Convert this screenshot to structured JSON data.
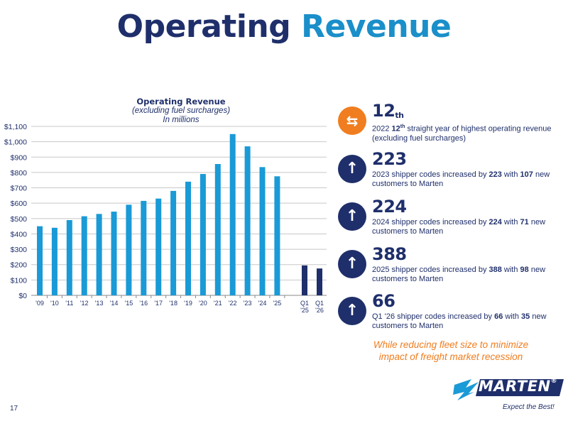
{
  "page": {
    "title_part1": "Operating",
    "title_part2": "Revenue",
    "number": "17"
  },
  "chart_data": {
    "type": "bar",
    "title": "Operating Revenue",
    "subtitle_line1": "(excluding fuel surcharges)",
    "subtitle_line2": "In millions",
    "y_ticks": [
      "$0",
      "$100",
      "$200",
      "$300",
      "$400",
      "$500",
      "$600",
      "$700",
      "$800",
      "$900",
      "$1,000",
      "$1,100"
    ],
    "ylim": [
      0,
      1100
    ],
    "grid": true,
    "annual": {
      "categories": [
        "'09",
        "'10",
        "'11",
        "'12",
        "'13",
        "'14",
        "'15",
        "'16",
        "'17",
        "'18",
        "'19",
        "'20",
        "'21",
        "'22",
        "'23",
        "'24",
        "'25"
      ],
      "values": [
        450,
        440,
        490,
        515,
        530,
        545,
        590,
        615,
        630,
        680,
        740,
        790,
        855,
        1050,
        970,
        835,
        775
      ],
      "color": "#1a9ad6"
    },
    "quarterly": {
      "categories": [
        "Q1\n'25",
        "Q1\n'26"
      ],
      "values": [
        195,
        175
      ],
      "color": "#1f2f6b"
    },
    "grid_color": "#c8c8c8",
    "axis_color": "#888888"
  },
  "stats": [
    {
      "icon": "swap-arrows-icon",
      "icon_color": "#f07d1f",
      "value": "12",
      "value_suffix": "th",
      "desc_parts": [
        "2022 ",
        "12",
        "th",
        " straight year of highest operating revenue (excluding fuel surcharges)"
      ]
    },
    {
      "icon": "up-arrow-icon",
      "icon_color": "#1f2f6b",
      "value": "223",
      "desc_parts": [
        "2023 shipper codes increased by ",
        "223",
        " with ",
        "107",
        " new customers to Marten"
      ]
    },
    {
      "icon": "up-arrow-icon",
      "icon_color": "#1f2f6b",
      "value": "224",
      "desc_parts": [
        "2024 shipper codes increased by ",
        "224",
        " with ",
        "71",
        " new customers to Marten"
      ]
    },
    {
      "icon": "up-arrow-icon",
      "icon_color": "#1f2f6b",
      "value": "388",
      "desc_parts": [
        "2025 shipper codes increased by ",
        "388",
        " with ",
        "98",
        " new customers to Marten"
      ]
    },
    {
      "icon": "up-arrow-icon",
      "icon_color": "#1f2f6b",
      "value": "66",
      "desc_parts": [
        "Q1 '26 shipper codes increased by ",
        "66",
        " with ",
        "35",
        " new customers to Marten"
      ]
    }
  ],
  "note": {
    "line1": "While reducing fleet size to minimize",
    "line2": "impact of freight market recession",
    "color": "#f07d1f"
  },
  "logo": {
    "wordmark": "MARTEN",
    "tagline": "Expect the Best!",
    "registered": "®"
  }
}
